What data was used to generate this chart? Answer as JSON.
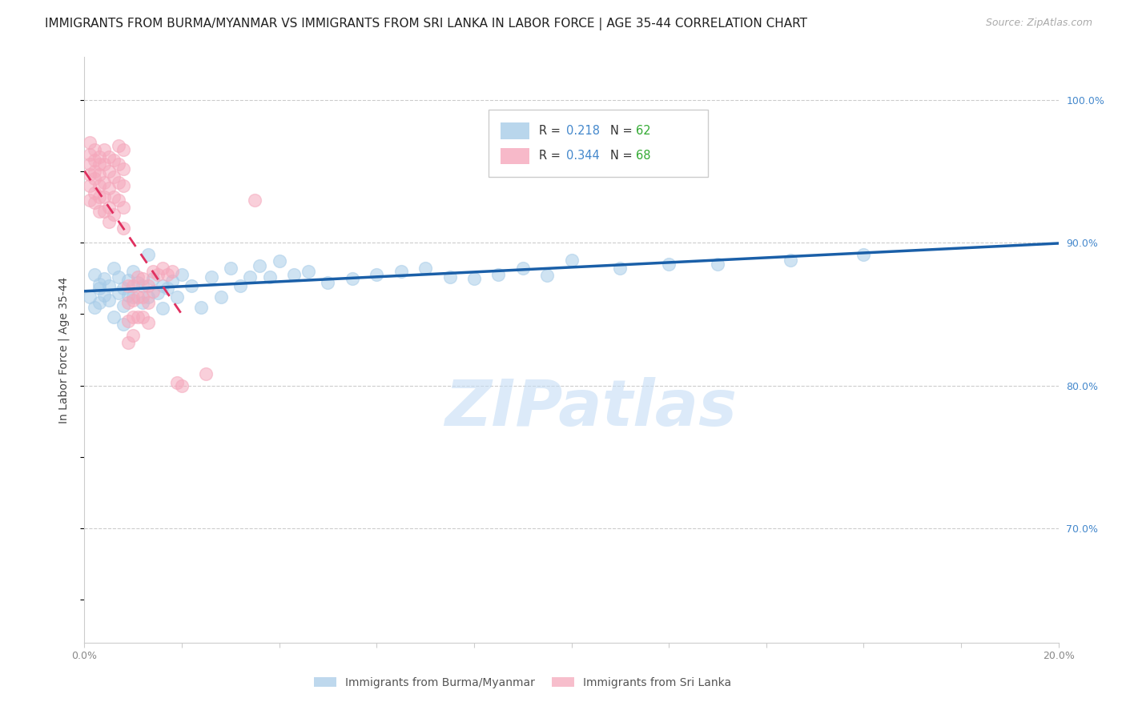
{
  "title": "IMMIGRANTS FROM BURMA/MYANMAR VS IMMIGRANTS FROM SRI LANKA IN LABOR FORCE | AGE 35-44 CORRELATION CHART",
  "source": "Source: ZipAtlas.com",
  "ylabel": "In Labor Force | Age 35-44",
  "xlim": [
    0.0,
    0.2
  ],
  "ylim": [
    0.62,
    1.03
  ],
  "watermark": "ZIPatlas",
  "blue_color": "#a8cce8",
  "pink_color": "#f5a8bc",
  "blue_line_color": "#1a5fa8",
  "pink_line_color": "#e03060",
  "blue_R": 0.218,
  "blue_N": 62,
  "pink_R": 0.344,
  "pink_N": 68,
  "title_fontsize": 11,
  "source_fontsize": 9,
  "axis_label_fontsize": 10,
  "tick_fontsize": 9,
  "watermark_fontsize": 58,
  "watermark_color": "#c5ddf5",
  "grid_color": "#cccccc",
  "background_color": "#ffffff",
  "right_tick_color": "#4488cc",
  "legend_R_color": "#4488cc",
  "legend_N_color": "#33aa33",
  "bottom_legend_color": "#555555",
  "blue_points_x": [
    0.001,
    0.002,
    0.002,
    0.003,
    0.003,
    0.003,
    0.004,
    0.004,
    0.005,
    0.005,
    0.006,
    0.006,
    0.007,
    0.007,
    0.008,
    0.008,
    0.008,
    0.009,
    0.009,
    0.01,
    0.01,
    0.011,
    0.012,
    0.012,
    0.013,
    0.013,
    0.014,
    0.015,
    0.016,
    0.016,
    0.017,
    0.018,
    0.019,
    0.02,
    0.022,
    0.024,
    0.026,
    0.028,
    0.03,
    0.032,
    0.034,
    0.036,
    0.038,
    0.04,
    0.043,
    0.046,
    0.05,
    0.055,
    0.06,
    0.065,
    0.07,
    0.075,
    0.08,
    0.085,
    0.09,
    0.095,
    0.1,
    0.11,
    0.12,
    0.13,
    0.145,
    0.16
  ],
  "blue_points_y": [
    0.862,
    0.878,
    0.855,
    0.871,
    0.858,
    0.868,
    0.863,
    0.875,
    0.86,
    0.87,
    0.882,
    0.848,
    0.876,
    0.865,
    0.868,
    0.856,
    0.843,
    0.874,
    0.863,
    0.88,
    0.862,
    0.872,
    0.87,
    0.858,
    0.892,
    0.862,
    0.875,
    0.865,
    0.87,
    0.854,
    0.868,
    0.873,
    0.862,
    0.878,
    0.87,
    0.855,
    0.876,
    0.862,
    0.882,
    0.87,
    0.876,
    0.884,
    0.876,
    0.887,
    0.878,
    0.88,
    0.872,
    0.875,
    0.878,
    0.88,
    0.882,
    0.876,
    0.875,
    0.878,
    0.882,
    0.877,
    0.888,
    0.882,
    0.885,
    0.885,
    0.888,
    0.892
  ],
  "pink_points_x": [
    0.001,
    0.001,
    0.001,
    0.001,
    0.001,
    0.001,
    0.002,
    0.002,
    0.002,
    0.002,
    0.002,
    0.002,
    0.003,
    0.003,
    0.003,
    0.003,
    0.003,
    0.003,
    0.004,
    0.004,
    0.004,
    0.004,
    0.004,
    0.005,
    0.005,
    0.005,
    0.005,
    0.005,
    0.006,
    0.006,
    0.006,
    0.006,
    0.007,
    0.007,
    0.007,
    0.007,
    0.008,
    0.008,
    0.008,
    0.008,
    0.008,
    0.009,
    0.009,
    0.009,
    0.009,
    0.01,
    0.01,
    0.01,
    0.01,
    0.011,
    0.011,
    0.011,
    0.012,
    0.012,
    0.012,
    0.013,
    0.013,
    0.013,
    0.014,
    0.014,
    0.015,
    0.016,
    0.017,
    0.018,
    0.019,
    0.02,
    0.025,
    0.035
  ],
  "pink_points_y": [
    0.955,
    0.962,
    0.97,
    0.948,
    0.94,
    0.93,
    0.958,
    0.965,
    0.95,
    0.945,
    0.935,
    0.928,
    0.96,
    0.955,
    0.948,
    0.94,
    0.932,
    0.922,
    0.965,
    0.955,
    0.942,
    0.932,
    0.922,
    0.96,
    0.95,
    0.938,
    0.925,
    0.915,
    0.958,
    0.946,
    0.932,
    0.92,
    0.968,
    0.955,
    0.942,
    0.93,
    0.965,
    0.952,
    0.94,
    0.925,
    0.91,
    0.87,
    0.858,
    0.845,
    0.83,
    0.87,
    0.86,
    0.848,
    0.835,
    0.876,
    0.862,
    0.848,
    0.875,
    0.862,
    0.848,
    0.87,
    0.858,
    0.844,
    0.88,
    0.866,
    0.878,
    0.882,
    0.878,
    0.88,
    0.802,
    0.8,
    0.808,
    0.93
  ]
}
